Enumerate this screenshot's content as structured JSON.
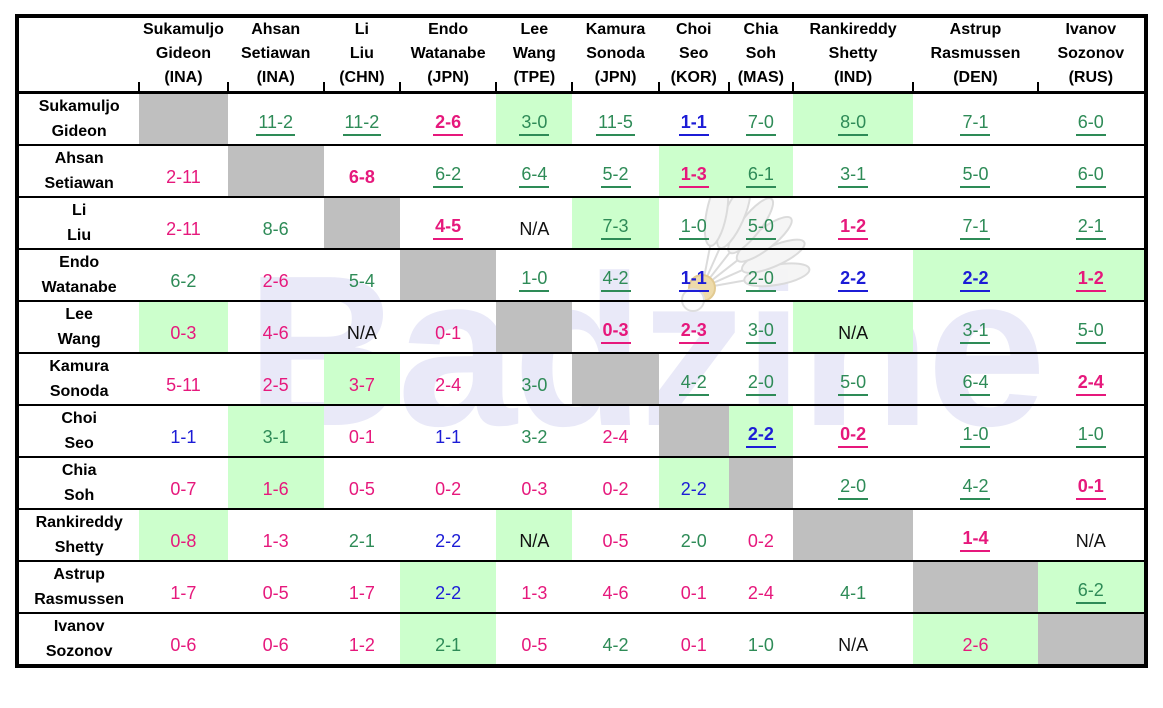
{
  "watermark": {
    "text": "Badzine"
  },
  "colors": {
    "win_text": "#2E8B57",
    "loss_text": "#E6187C",
    "tie_text": "#1C1CD6",
    "na_text": "#111111",
    "highlight_bg": "#CCFFCC",
    "diagonal_bg": "#BFBFBF",
    "grid": "#000000",
    "watermark_text": "#E9E9F8"
  },
  "table": {
    "columns": [
      {
        "p1": "Sukamuljo",
        "p2": "Gideon",
        "c": "(INA)"
      },
      {
        "p1": "Ahsan",
        "p2": "Setiawan",
        "c": "(INA)"
      },
      {
        "p1": "Li",
        "p2": "Liu",
        "c": "(CHN)"
      },
      {
        "p1": "Endo",
        "p2": "Watanabe",
        "c": "(JPN)"
      },
      {
        "p1": "Lee",
        "p2": "Wang",
        "c": "(TPE)"
      },
      {
        "p1": "Kamura",
        "p2": "Sonoda",
        "c": "(JPN)"
      },
      {
        "p1": "Choi",
        "p2": "Seo",
        "c": "(KOR)"
      },
      {
        "p1": "Chia",
        "p2": "Soh",
        "c": "(MAS)"
      },
      {
        "p1": "Rankireddy",
        "p2": "Shetty",
        "c": "(IND)"
      },
      {
        "p1": "Astrup",
        "p2": "Rasmussen",
        "c": "(DEN)"
      },
      {
        "p1": "Ivanov",
        "p2": "Sozonov",
        "c": "(RUS)"
      }
    ],
    "rows": [
      {
        "p1": "Sukamuljo",
        "p2": "Gideon",
        "cells": [
          {
            "v": "",
            "bg": "diag"
          },
          {
            "v": "11-2",
            "r": "w",
            "u": 1
          },
          {
            "v": "11-2",
            "r": "w",
            "u": 1
          },
          {
            "v": "2-6",
            "r": "l",
            "u": 1,
            "b": 1
          },
          {
            "v": "3-0",
            "r": "w",
            "u": 1,
            "bg": "green"
          },
          {
            "v": "11-5",
            "r": "w",
            "u": 1
          },
          {
            "v": "1-1",
            "r": "t",
            "u": 1,
            "b": 1
          },
          {
            "v": "7-0",
            "r": "w",
            "u": 1
          },
          {
            "v": "8-0",
            "r": "w",
            "u": 1,
            "bg": "green"
          },
          {
            "v": "7-1",
            "r": "w",
            "u": 1
          },
          {
            "v": "6-0",
            "r": "w",
            "u": 1
          }
        ]
      },
      {
        "p1": "Ahsan",
        "p2": "Setiawan",
        "cells": [
          {
            "v": "2-11",
            "r": "l"
          },
          {
            "v": "",
            "bg": "diag"
          },
          {
            "v": "6-8",
            "r": "l",
            "b": 1
          },
          {
            "v": "6-2",
            "r": "w",
            "u": 1
          },
          {
            "v": "6-4",
            "r": "w",
            "u": 1
          },
          {
            "v": "5-2",
            "r": "w",
            "u": 1
          },
          {
            "v": "1-3",
            "r": "l",
            "u": 1,
            "b": 1,
            "bg": "green"
          },
          {
            "v": "6-1",
            "r": "w",
            "u": 1,
            "bg": "green"
          },
          {
            "v": "3-1",
            "r": "w",
            "u": 1
          },
          {
            "v": "5-0",
            "r": "w",
            "u": 1
          },
          {
            "v": "6-0",
            "r": "w",
            "u": 1
          }
        ]
      },
      {
        "p1": "Li",
        "p2": "Liu",
        "cells": [
          {
            "v": "2-11",
            "r": "l"
          },
          {
            "v": "8-6",
            "r": "w"
          },
          {
            "v": "",
            "bg": "diag"
          },
          {
            "v": "4-5",
            "r": "l",
            "u": 1,
            "b": 1
          },
          {
            "v": "N/A",
            "r": "na"
          },
          {
            "v": "7-3",
            "r": "w",
            "u": 1,
            "bg": "green"
          },
          {
            "v": "1-0",
            "r": "w",
            "u": 1
          },
          {
            "v": "5-0",
            "r": "w",
            "u": 1
          },
          {
            "v": "1-2",
            "r": "l",
            "u": 1,
            "b": 1
          },
          {
            "v": "7-1",
            "r": "w",
            "u": 1
          },
          {
            "v": "2-1",
            "r": "w",
            "u": 1
          }
        ]
      },
      {
        "p1": "Endo",
        "p2": "Watanabe",
        "cells": [
          {
            "v": "6-2",
            "r": "w"
          },
          {
            "v": "2-6",
            "r": "l"
          },
          {
            "v": "5-4",
            "r": "w"
          },
          {
            "v": "",
            "bg": "diag"
          },
          {
            "v": "1-0",
            "r": "w",
            "u": 1
          },
          {
            "v": "4-2",
            "r": "w",
            "u": 1
          },
          {
            "v": "1-1",
            "r": "t",
            "u": 1,
            "b": 1
          },
          {
            "v": "2-0",
            "r": "w",
            "u": 1
          },
          {
            "v": "2-2",
            "r": "t",
            "u": 1,
            "b": 1
          },
          {
            "v": "2-2",
            "r": "t",
            "u": 1,
            "b": 1,
            "bg": "green"
          },
          {
            "v": "1-2",
            "r": "l",
            "u": 1,
            "b": 1,
            "bg": "green"
          }
        ]
      },
      {
        "p1": "Lee",
        "p2": "Wang",
        "cells": [
          {
            "v": "0-3",
            "r": "l",
            "bg": "green"
          },
          {
            "v": "4-6",
            "r": "l"
          },
          {
            "v": "N/A",
            "r": "na"
          },
          {
            "v": "0-1",
            "r": "l"
          },
          {
            "v": "",
            "bg": "diag"
          },
          {
            "v": "0-3",
            "r": "l",
            "u": 1,
            "b": 1
          },
          {
            "v": "2-3",
            "r": "l",
            "u": 1,
            "b": 1
          },
          {
            "v": "3-0",
            "r": "w",
            "u": 1
          },
          {
            "v": "N/A",
            "r": "na",
            "bg": "green"
          },
          {
            "v": "3-1",
            "r": "w",
            "u": 1
          },
          {
            "v": "5-0",
            "r": "w",
            "u": 1
          }
        ]
      },
      {
        "p1": "Kamura",
        "p2": "Sonoda",
        "cells": [
          {
            "v": "5-11",
            "r": "l"
          },
          {
            "v": "2-5",
            "r": "l"
          },
          {
            "v": "3-7",
            "r": "l",
            "bg": "green"
          },
          {
            "v": "2-4",
            "r": "l"
          },
          {
            "v": "3-0",
            "r": "w"
          },
          {
            "v": "",
            "bg": "diag"
          },
          {
            "v": "4-2",
            "r": "w",
            "u": 1
          },
          {
            "v": "2-0",
            "r": "w",
            "u": 1
          },
          {
            "v": "5-0",
            "r": "w",
            "u": 1
          },
          {
            "v": "6-4",
            "r": "w",
            "u": 1
          },
          {
            "v": "2-4",
            "r": "l",
            "u": 1,
            "b": 1
          }
        ]
      },
      {
        "p1": "Choi",
        "p2": "Seo",
        "cells": [
          {
            "v": "1-1",
            "r": "t"
          },
          {
            "v": "3-1",
            "r": "w",
            "bg": "green"
          },
          {
            "v": "0-1",
            "r": "l"
          },
          {
            "v": "1-1",
            "r": "t"
          },
          {
            "v": "3-2",
            "r": "w"
          },
          {
            "v": "2-4",
            "r": "l"
          },
          {
            "v": "",
            "bg": "diag"
          },
          {
            "v": "2-2",
            "r": "t",
            "u": 1,
            "b": 1,
            "bg": "green"
          },
          {
            "v": "0-2",
            "r": "l",
            "u": 1,
            "b": 1
          },
          {
            "v": "1-0",
            "r": "w",
            "u": 1
          },
          {
            "v": "1-0",
            "r": "w",
            "u": 1
          }
        ]
      },
      {
        "p1": "Chia",
        "p2": "Soh",
        "cells": [
          {
            "v": "0-7",
            "r": "l"
          },
          {
            "v": "1-6",
            "r": "l",
            "bg": "green"
          },
          {
            "v": "0-5",
            "r": "l"
          },
          {
            "v": "0-2",
            "r": "l"
          },
          {
            "v": "0-3",
            "r": "l"
          },
          {
            "v": "0-2",
            "r": "l"
          },
          {
            "v": "2-2",
            "r": "t",
            "bg": "green"
          },
          {
            "v": "",
            "bg": "diag"
          },
          {
            "v": "2-0",
            "r": "w",
            "u": 1
          },
          {
            "v": "4-2",
            "r": "w",
            "u": 1
          },
          {
            "v": "0-1",
            "r": "l",
            "u": 1,
            "b": 1
          }
        ]
      },
      {
        "p1": "Rankireddy",
        "p2": "Shetty",
        "cells": [
          {
            "v": "0-8",
            "r": "l",
            "bg": "green"
          },
          {
            "v": "1-3",
            "r": "l"
          },
          {
            "v": "2-1",
            "r": "w"
          },
          {
            "v": "2-2",
            "r": "t"
          },
          {
            "v": "N/A",
            "r": "na",
            "bg": "green"
          },
          {
            "v": "0-5",
            "r": "l"
          },
          {
            "v": "2-0",
            "r": "w"
          },
          {
            "v": "0-2",
            "r": "l"
          },
          {
            "v": "",
            "bg": "diag"
          },
          {
            "v": "1-4",
            "r": "l",
            "u": 1,
            "b": 1
          },
          {
            "v": "N/A",
            "r": "na"
          }
        ]
      },
      {
        "p1": "Astrup",
        "p2": "Rasmussen",
        "cells": [
          {
            "v": "1-7",
            "r": "l"
          },
          {
            "v": "0-5",
            "r": "l"
          },
          {
            "v": "1-7",
            "r": "l"
          },
          {
            "v": "2-2",
            "r": "t",
            "bg": "green"
          },
          {
            "v": "1-3",
            "r": "l"
          },
          {
            "v": "4-6",
            "r": "l"
          },
          {
            "v": "0-1",
            "r": "l"
          },
          {
            "v": "2-4",
            "r": "l"
          },
          {
            "v": "4-1",
            "r": "w"
          },
          {
            "v": "",
            "bg": "diag"
          },
          {
            "v": "6-2",
            "r": "w",
            "u": 1,
            "bg": "green"
          }
        ]
      },
      {
        "p1": "Ivanov",
        "p2": "Sozonov",
        "cells": [
          {
            "v": "0-6",
            "r": "l"
          },
          {
            "v": "0-6",
            "r": "l"
          },
          {
            "v": "1-2",
            "r": "l"
          },
          {
            "v": "2-1",
            "r": "w",
            "bg": "green"
          },
          {
            "v": "0-5",
            "r": "l"
          },
          {
            "v": "4-2",
            "r": "w"
          },
          {
            "v": "0-1",
            "r": "l"
          },
          {
            "v": "1-0",
            "r": "w"
          },
          {
            "v": "N/A",
            "r": "na"
          },
          {
            "v": "2-6",
            "r": "l",
            "bg": "green"
          },
          {
            "v": "",
            "bg": "diag"
          }
        ]
      }
    ]
  },
  "chart_data": {
    "type": "table",
    "title": "",
    "columns": [
      "Sukamuljo Gideon (INA)",
      "Ahsan Setiawan (INA)",
      "Li Liu (CHN)",
      "Endo Watanabe (JPN)",
      "Lee Wang (TPE)",
      "Kamura Sonoda (JPN)",
      "Choi Seo (KOR)",
      "Chia Soh (MAS)",
      "Rankireddy Shetty (IND)",
      "Astrup Rasmussen (DEN)",
      "Ivanov Sozonov (RUS)"
    ],
    "rows": [
      "Sukamuljo Gideon (INA)",
      "Ahsan Setiawan (INA)",
      "Li Liu (CHN)",
      "Endo Watanabe (JPN)",
      "Lee Wang (TPE)",
      "Kamura Sonoda (JPN)",
      "Choi Seo (KOR)",
      "Chia Soh (MAS)",
      "Rankireddy Shetty (IND)",
      "Astrup Rasmussen (DEN)",
      "Ivanov Sozonov (RUS)"
    ],
    "matrix": [
      [
        "",
        "11-2",
        "11-2",
        "2-6",
        "3-0",
        "11-5",
        "1-1",
        "7-0",
        "8-0",
        "7-1",
        "6-0"
      ],
      [
        "2-11",
        "",
        "6-8",
        "6-2",
        "6-4",
        "5-2",
        "1-3",
        "6-1",
        "3-1",
        "5-0",
        "6-0"
      ],
      [
        "2-11",
        "8-6",
        "",
        "4-5",
        "N/A",
        "7-3",
        "1-0",
        "5-0",
        "1-2",
        "7-1",
        "2-1"
      ],
      [
        "6-2",
        "2-6",
        "5-4",
        "",
        "1-0",
        "4-2",
        "1-1",
        "2-0",
        "2-2",
        "2-2",
        "1-2"
      ],
      [
        "0-3",
        "4-6",
        "N/A",
        "0-1",
        "",
        "0-3",
        "2-3",
        "3-0",
        "N/A",
        "3-1",
        "5-0"
      ],
      [
        "5-11",
        "2-5",
        "3-7",
        "2-4",
        "3-0",
        "",
        "4-2",
        "2-0",
        "5-0",
        "6-4",
        "2-4"
      ],
      [
        "1-1",
        "3-1",
        "0-1",
        "1-1",
        "3-2",
        "2-4",
        "",
        "2-2",
        "0-2",
        "1-0",
        "1-0"
      ],
      [
        "0-7",
        "1-6",
        "0-5",
        "0-2",
        "0-3",
        "0-2",
        "2-2",
        "",
        "2-0",
        "4-2",
        "0-1"
      ],
      [
        "0-8",
        "1-3",
        "2-1",
        "2-2",
        "N/A",
        "0-5",
        "2-0",
        "0-2",
        "",
        "1-4",
        "N/A"
      ],
      [
        "1-7",
        "0-5",
        "1-7",
        "2-2",
        "1-3",
        "4-6",
        "0-1",
        "2-4",
        "4-1",
        "",
        "6-2"
      ],
      [
        "0-6",
        "0-6",
        "1-2",
        "2-1",
        "0-5",
        "4-2",
        "0-1",
        "1-0",
        "N/A",
        "2-6",
        ""
      ]
    ],
    "legend_note": "green text = winning record, pink text = losing record, blue text = tied record, green cell = highlighted matchup, gray cell = same pair"
  }
}
